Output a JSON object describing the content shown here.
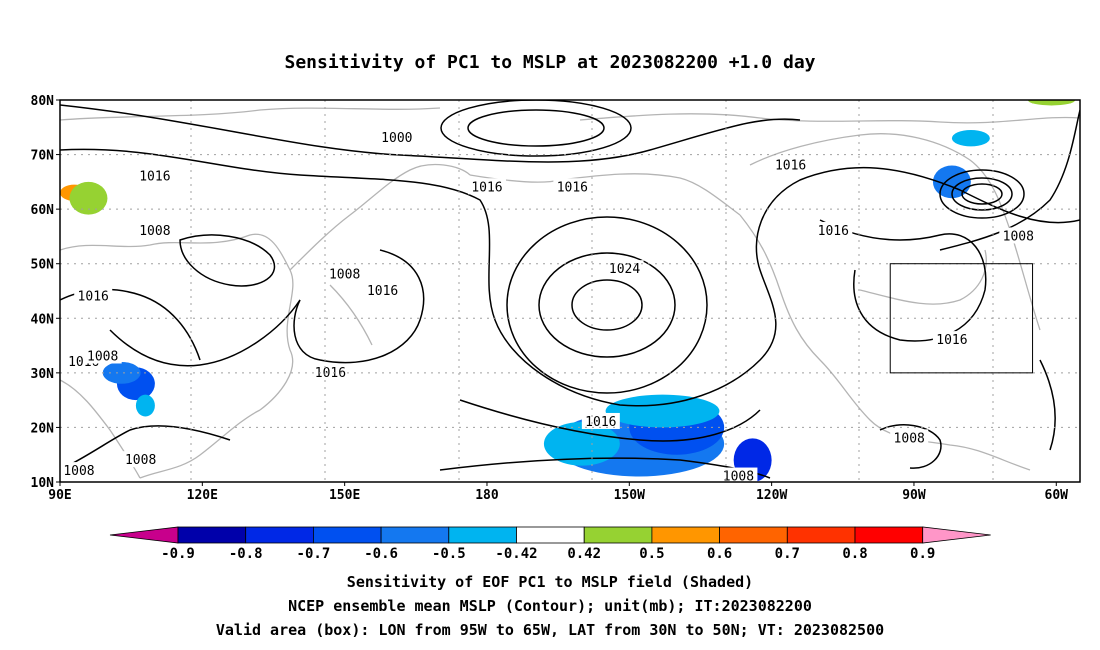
{
  "title": "Sensitivity of PC1 to MSLP at 2023082200 +1.0 day",
  "lat_ticks": [
    "80N",
    "70N",
    "60N",
    "50N",
    "40N",
    "30N",
    "20N",
    "10N"
  ],
  "lon_ticks": [
    "90E",
    "120E",
    "150E",
    "180",
    "150W",
    "120W",
    "90W",
    "60W"
  ],
  "contour_labels": [
    {
      "text": "1000",
      "lon": 161,
      "lat": 73
    },
    {
      "text": "1016",
      "lon": 110,
      "lat": 66
    },
    {
      "text": "1016",
      "lon": 180,
      "lat": 64
    },
    {
      "text": "1016",
      "lon": -162,
      "lat": 64
    },
    {
      "text": "1016",
      "lon": -116,
      "lat": 68
    },
    {
      "text": "1008",
      "lon": 110,
      "lat": 56
    },
    {
      "text": "1016",
      "lon": 97,
      "lat": 44
    },
    {
      "text": "1008",
      "lon": 150,
      "lat": 48
    },
    {
      "text": "1016",
      "lon": 158,
      "lat": 45
    },
    {
      "text": "1024",
      "lon": -151,
      "lat": 49
    },
    {
      "text": "1016",
      "lon": -107,
      "lat": 56
    },
    {
      "text": "1008",
      "lon": -68,
      "lat": 55
    },
    {
      "text": "1016",
      "lon": -82,
      "lat": 36
    },
    {
      "text": "1016",
      "lon": 95,
      "lat": 32
    },
    {
      "text": "1008",
      "lon": 99,
      "lat": 33
    },
    {
      "text": "1016",
      "lon": 147,
      "lat": 30
    },
    {
      "text": "1016",
      "lon": -156,
      "lat": 21
    },
    {
      "text": "1008",
      "lon": -91,
      "lat": 18
    },
    {
      "text": "1008",
      "lon": 94,
      "lat": 12
    },
    {
      "text": "1008",
      "lon": 107,
      "lat": 14
    },
    {
      "text": "1008",
      "lon": -127,
      "lat": 11
    }
  ],
  "valid_box": {
    "lon_min": -95,
    "lon_max": -65,
    "lat_min": 30,
    "lat_max": 50
  },
  "colorbar": {
    "labels": [
      "-0.9",
      "-0.8",
      "-0.7",
      "-0.6",
      "-0.5",
      "-0.42",
      "0.42",
      "0.5",
      "0.6",
      "0.7",
      "0.8",
      "0.9"
    ],
    "colors": [
      "#c8008c",
      "#0000aa",
      "#0028e6",
      "#0050f0",
      "#1478f0",
      "#00b4f0",
      "#ffffff",
      "#96d232",
      "#ff9600",
      "#ff6400",
      "#ff3200",
      "#ff0000",
      "#ff96c8"
    ]
  },
  "shaded_regions": [
    {
      "color": "#1478f0",
      "lon": -148,
      "lat": 17,
      "rx": 18,
      "ry": 6
    },
    {
      "color": "#00b4f0",
      "lon": -160,
      "lat": 17,
      "rx": 8,
      "ry": 4
    },
    {
      "color": "#0050f0",
      "lon": -140,
      "lat": 20,
      "rx": 10,
      "ry": 5
    },
    {
      "color": "#0028e6",
      "lon": -124,
      "lat": 14,
      "rx": 4,
      "ry": 4
    },
    {
      "color": "#00b4f0",
      "lon": -143,
      "lat": 23,
      "rx": 12,
      "ry": 3
    },
    {
      "color": "#1478f0",
      "lon": -82,
      "lat": 65,
      "rx": 4,
      "ry": 3
    },
    {
      "color": "#00b4f0",
      "lon": -78,
      "lat": 73,
      "rx": 4,
      "ry": 1.5
    },
    {
      "color": "#0050f0",
      "lon": 106,
      "lat": 28,
      "rx": 4,
      "ry": 3
    },
    {
      "color": "#1478f0",
      "lon": 103,
      "lat": 30,
      "rx": 4,
      "ry": 2
    },
    {
      "color": "#00b4f0",
      "lon": 108,
      "lat": 24,
      "rx": 2,
      "ry": 2
    },
    {
      "color": "#ff9600",
      "lon": 93,
      "lat": 63,
      "rx": 3,
      "ry": 1.5
    },
    {
      "color": "#96d232",
      "lon": 96,
      "lat": 62,
      "rx": 4,
      "ry": 3
    },
    {
      "color": "#96d232",
      "lon": -61,
      "lat": 80,
      "rx": 5,
      "ry": 1
    }
  ],
  "captions": {
    "line1": "Sensitivity of EOF PC1 to MSLP field (Shaded)",
    "line2": "NCEP ensemble mean MSLP (Contour); unit(mb); IT:2023082200",
    "line3": "Valid area (box): LON from 95W to 65W, LAT from 30N to 50N; VT: 2023082500"
  }
}
